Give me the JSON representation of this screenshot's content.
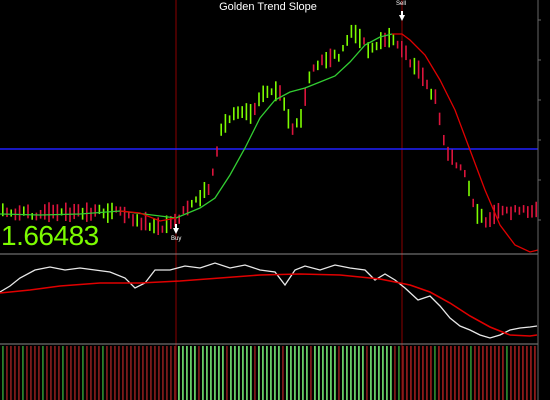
{
  "window": {
    "title": "Golden Trend Slope",
    "current_price": "1.66483"
  },
  "colors": {
    "background": "#000000",
    "bull_candle": "#7cfc00",
    "bear_candle": "#dc143c",
    "trend_up": "#32cd32",
    "trend_down": "#e00000",
    "blue_level": "#2020ff",
    "vline": "#8b0000",
    "osc_fast": "#e8e8e8",
    "osc_slow": "#e00000"
  },
  "signals": {
    "buy_label": "Buy",
    "sell_label": "Sell"
  }
}
